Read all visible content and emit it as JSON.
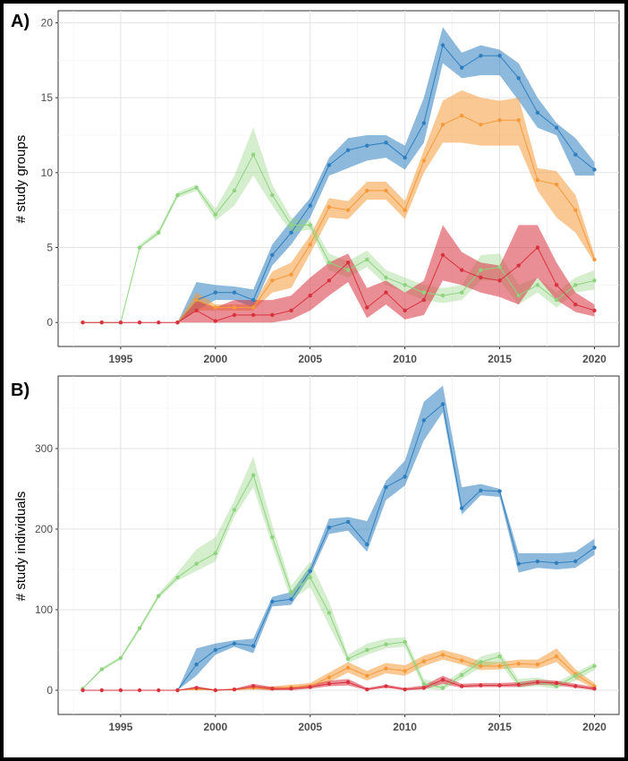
{
  "colors": {
    "blue": "#2f7fbf",
    "orange": "#f59a3b",
    "green": "#8fd37f",
    "red": "#d8323f"
  },
  "chart_data": [
    {
      "panel": "A)",
      "type": "line",
      "xlabel": "",
      "ylabel": "# study groups",
      "xlim": [
        1993,
        2020
      ],
      "ylim": [
        0,
        20
      ],
      "xticks": [
        "1995",
        "2000",
        "2005",
        "2010",
        "2015",
        "2020"
      ],
      "yticks": [
        "0",
        "5",
        "10",
        "15",
        "20"
      ],
      "grid": true,
      "series": [
        {
          "color": "#2f7fbf",
          "band": true,
          "x": [
            1998,
            1999,
            2000,
            2001,
            2002,
            2003,
            2004,
            2005,
            2006,
            2007,
            2008,
            2009,
            2010,
            2011,
            2012,
            2013,
            2014,
            2015,
            2016,
            2017,
            2018,
            2019,
            2020
          ],
          "values": [
            0,
            1.5,
            2,
            2,
            1.5,
            4.5,
            6,
            7.8,
            10.5,
            11.5,
            11.8,
            12,
            11,
            13.3,
            18.5,
            17,
            17.8,
            17.8,
            16.3,
            14,
            13,
            11.2,
            10.2
          ],
          "lower": [
            0,
            0.8,
            1.5,
            1.5,
            1.0,
            3.8,
            5.2,
            7.0,
            9.8,
            10.3,
            10.8,
            11.0,
            10.2,
            12.0,
            17.3,
            16.3,
            16.5,
            16.5,
            14.8,
            13.0,
            12.5,
            9.8,
            9.8
          ],
          "upper": [
            0,
            2.7,
            2.5,
            2.4,
            2.2,
            5.2,
            6.8,
            8.3,
            11.0,
            12.3,
            12.5,
            12.5,
            11.8,
            15.0,
            19.7,
            18.0,
            18.5,
            18.2,
            17.3,
            15.0,
            13.3,
            12.3,
            10.7
          ]
        },
        {
          "color": "#f59a3b",
          "band": true,
          "x": [
            1998,
            1999,
            2000,
            2001,
            2002,
            2003,
            2004,
            2005,
            2006,
            2007,
            2008,
            2009,
            2010,
            2011,
            2012,
            2013,
            2014,
            2015,
            2016,
            2017,
            2018,
            2019,
            2020
          ],
          "values": [
            0,
            1.5,
            1,
            1,
            1,
            2.8,
            3.2,
            5.2,
            7.7,
            7.5,
            8.8,
            8.8,
            7.5,
            10.8,
            13.2,
            13.8,
            13.2,
            13.5,
            13.5,
            9.5,
            9.2,
            7.5,
            4.2
          ],
          "lower": [
            0,
            0.8,
            0.8,
            0.8,
            0.8,
            2.0,
            2.3,
            4.6,
            7.0,
            6.9,
            8.2,
            8.2,
            6.9,
            10.0,
            12.0,
            12.0,
            11.8,
            11.8,
            11.8,
            8.8,
            7.0,
            6.0,
            4.0
          ],
          "upper": [
            0,
            2.0,
            1.2,
            1.2,
            1.2,
            3.4,
            4.0,
            5.8,
            8.3,
            8.1,
            9.4,
            9.4,
            8.1,
            11.5,
            14.8,
            15.5,
            15.0,
            14.8,
            15.0,
            10.3,
            10.1,
            8.5,
            4.5
          ]
        },
        {
          "color": "#8fd37f",
          "band": true,
          "x": [
            1993,
            1994,
            1995,
            1996,
            1997,
            1998,
            1999,
            2000,
            2001,
            2002,
            2003,
            2004,
            2005,
            2006,
            2007,
            2008,
            2009,
            2010,
            2011,
            2012,
            2013,
            2014,
            2015,
            2016,
            2017,
            2018,
            2019,
            2020
          ],
          "values": [
            0,
            0,
            0,
            5,
            6,
            8.5,
            9,
            7.2,
            8.8,
            11.2,
            8.5,
            6.5,
            6.5,
            4,
            3.5,
            4.2,
            3,
            2.5,
            2,
            1.8,
            2,
            3.5,
            3.7,
            1.8,
            2.5,
            1.5,
            2.5,
            2.8
          ],
          "lower": [
            0,
            0,
            0,
            5,
            5.8,
            8.3,
            8.8,
            6.8,
            7.8,
            9.8,
            7.8,
            6.0,
            6.2,
            3.5,
            3.0,
            3.7,
            2.5,
            2.0,
            1.5,
            1.3,
            1.5,
            2.8,
            2.8,
            1.2,
            2.0,
            1.0,
            2.0,
            2.2
          ],
          "upper": [
            0,
            0,
            0,
            5.2,
            6.2,
            8.7,
            9.2,
            7.6,
            9.8,
            13.0,
            9.2,
            7.0,
            6.8,
            4.6,
            4.1,
            4.8,
            3.5,
            3.0,
            2.5,
            2.3,
            2.5,
            4.5,
            4.6,
            2.5,
            3.0,
            2.0,
            3.0,
            3.5
          ]
        },
        {
          "color": "#d8323f",
          "band": true,
          "x": [
            1993,
            1994,
            1995,
            1996,
            1997,
            1998,
            1999,
            2000,
            2001,
            2002,
            2003,
            2004,
            2005,
            2006,
            2007,
            2008,
            2009,
            2010,
            2011,
            2012,
            2013,
            2014,
            2015,
            2016,
            2017,
            2018,
            2019,
            2020
          ],
          "values": [
            0,
            0,
            0,
            0,
            0,
            0,
            0.8,
            0.1,
            0.5,
            0.5,
            0.5,
            0.8,
            1.8,
            2.8,
            4,
            1,
            2,
            0.8,
            1.5,
            4.5,
            3.5,
            3,
            2.8,
            3.8,
            5,
            2.5,
            1.2,
            0.8
          ],
          "lower": [
            0,
            0,
            0,
            0,
            0,
            0,
            0.0,
            0.0,
            0.0,
            0.0,
            0.0,
            0.2,
            0.8,
            1.8,
            2.7,
            0.3,
            1.2,
            0.2,
            0.5,
            2.8,
            2.5,
            2.0,
            1.7,
            1.2,
            3.0,
            1.5,
            0.7,
            0.4
          ],
          "upper": [
            0,
            0,
            0,
            0,
            0,
            0,
            1.5,
            1.0,
            1.5,
            1.5,
            1.5,
            1.8,
            3.0,
            4.0,
            4.6,
            2.3,
            2.8,
            2.0,
            2.8,
            6.5,
            4.7,
            4.0,
            3.8,
            6.5,
            6.5,
            4.0,
            2.0,
            1.2
          ]
        }
      ]
    },
    {
      "panel": "B)",
      "type": "line",
      "xlabel": "",
      "ylabel": "# study individuals",
      "xlim": [
        1993,
        2020
      ],
      "ylim": [
        0,
        350
      ],
      "xticks": [
        "1995",
        "2000",
        "2005",
        "2010",
        "2015",
        "2020"
      ],
      "yticks": [
        "0",
        "100",
        "200",
        "300"
      ],
      "grid": true,
      "series": [
        {
          "color": "#2f7fbf",
          "band": true,
          "x": [
            1998,
            1999,
            2000,
            2001,
            2002,
            2003,
            2004,
            2005,
            2006,
            2007,
            2008,
            2009,
            2010,
            2011,
            2012,
            2013,
            2014,
            2015,
            2016,
            2017,
            2018,
            2019,
            2020
          ],
          "values": [
            0,
            32,
            50,
            58,
            55,
            110,
            113,
            148,
            202,
            209,
            181,
            252,
            265,
            335,
            355,
            226,
            248,
            247,
            157,
            160,
            158,
            160,
            177
          ],
          "lower": [
            0,
            18,
            44,
            54,
            46,
            104,
            106,
            142,
            194,
            198,
            172,
            236,
            254,
            310,
            345,
            218,
            242,
            240,
            146,
            152,
            150,
            152,
            168
          ],
          "upper": [
            0,
            52,
            58,
            62,
            64,
            116,
            122,
            154,
            213,
            215,
            210,
            260,
            285,
            358,
            378,
            252,
            256,
            250,
            170,
            170,
            170,
            172,
            188
          ]
        },
        {
          "color": "#f59a3b",
          "band": true,
          "x": [
            1998,
            1999,
            2000,
            2001,
            2002,
            2003,
            2004,
            2005,
            2006,
            2007,
            2008,
            2009,
            2010,
            2011,
            2012,
            2013,
            2014,
            2015,
            2016,
            2017,
            2018,
            2019,
            2020
          ],
          "values": [
            0,
            2,
            0,
            1,
            3,
            2,
            4,
            5,
            16,
            28,
            18,
            27,
            24,
            36,
            44,
            37,
            30,
            30,
            33,
            32,
            42,
            20,
            5
          ],
          "lower": [
            0,
            0,
            0,
            0,
            1,
            0,
            2,
            3,
            10,
            22,
            12,
            21,
            18,
            30,
            38,
            32,
            25,
            26,
            28,
            27,
            35,
            14,
            2
          ],
          "upper": [
            0,
            4,
            1,
            2,
            5,
            5,
            7,
            9,
            22,
            35,
            24,
            34,
            31,
            43,
            50,
            44,
            36,
            35,
            38,
            38,
            52,
            26,
            9
          ]
        },
        {
          "color": "#8fd37f",
          "band": true,
          "x": [
            1993,
            1994,
            1995,
            1996,
            1997,
            1998,
            1999,
            2000,
            2001,
            2002,
            2003,
            2004,
            2005,
            2006,
            2007,
            2008,
            2009,
            2010,
            2011,
            2012,
            2013,
            2014,
            2015,
            2016,
            2017,
            2018,
            2019,
            2020
          ],
          "values": [
            2,
            26,
            40,
            77,
            117,
            140,
            157,
            170,
            224,
            267,
            190,
            122,
            140,
            96,
            39,
            50,
            57,
            60,
            8,
            3,
            19,
            35,
            42,
            8,
            10,
            5,
            18,
            30
          ],
          "lower": [
            2,
            24,
            38,
            74,
            114,
            136,
            148,
            160,
            216,
            252,
            180,
            112,
            128,
            80,
            34,
            44,
            52,
            54,
            2,
            0,
            14,
            28,
            34,
            3,
            5,
            2,
            12,
            25
          ],
          "upper": [
            3,
            28,
            42,
            80,
            120,
            146,
            175,
            190,
            236,
            290,
            205,
            130,
            160,
            110,
            44,
            58,
            64,
            66,
            14,
            8,
            24,
            42,
            48,
            14,
            16,
            10,
            22,
            34
          ]
        },
        {
          "color": "#d8323f",
          "band": true,
          "x": [
            1993,
            1994,
            1995,
            1996,
            1997,
            1998,
            1999,
            2000,
            2001,
            2002,
            2003,
            2004,
            2005,
            2006,
            2007,
            2008,
            2009,
            2010,
            2011,
            2012,
            2013,
            2014,
            2015,
            2016,
            2017,
            2018,
            2019,
            2020
          ],
          "values": [
            0,
            0,
            0,
            0,
            0,
            0,
            3,
            0,
            1,
            5,
            2,
            2,
            4,
            8,
            10,
            1,
            5,
            1,
            3,
            13,
            5,
            6,
            6,
            7,
            10,
            9,
            5,
            2
          ],
          "lower": [
            0,
            0,
            0,
            0,
            0,
            0,
            1,
            0,
            0,
            2,
            0,
            0,
            2,
            5,
            6,
            0,
            3,
            0,
            1,
            8,
            3,
            4,
            4,
            4,
            7,
            6,
            3,
            0
          ],
          "upper": [
            0,
            0,
            0,
            0,
            0,
            0,
            5,
            1,
            2,
            8,
            4,
            4,
            7,
            12,
            14,
            3,
            7,
            3,
            6,
            18,
            8,
            9,
            9,
            10,
            13,
            12,
            8,
            4
          ]
        }
      ]
    }
  ]
}
